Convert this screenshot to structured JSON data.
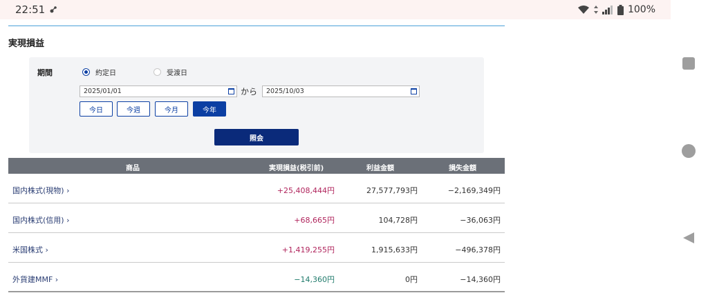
{
  "status_bar": {
    "time": "22:51",
    "battery": "100%"
  },
  "page": {
    "title": "実現損益"
  },
  "filter": {
    "period_label": "期間",
    "radio_options": [
      {
        "label": "約定日",
        "checked": true
      },
      {
        "label": "受渡日",
        "checked": false
      }
    ],
    "date_from": "2025/01/01",
    "date_to": "2025/10/03",
    "from_label": "から",
    "quick_buttons": [
      {
        "label": "今日",
        "active": false
      },
      {
        "label": "今週",
        "active": false
      },
      {
        "label": "今月",
        "active": false
      },
      {
        "label": "今年",
        "active": true
      }
    ],
    "submit_label": "照会"
  },
  "table": {
    "headers": {
      "product": "商品",
      "realized": "実現損益(税引前)",
      "profit": "利益金額",
      "loss": "損失金額"
    },
    "rows": [
      {
        "product": "国内株式(現物) ›",
        "realized": "+25,408,444円",
        "profit": "27,577,793円",
        "loss": "−2,169,349円",
        "sign": "pos"
      },
      {
        "product": "国内株式(信用) ›",
        "realized": "+68,665円",
        "profit": "104,728円",
        "loss": "−36,063円",
        "sign": "pos"
      },
      {
        "product": "米国株式 ›",
        "realized": "+1,419,255円",
        "profit": "1,915,633円",
        "loss": "−496,378円",
        "sign": "pos"
      },
      {
        "product": "外貨建MMF ›",
        "realized": "−14,360円",
        "profit": "0円",
        "loss": "−14,360円",
        "sign": "neg"
      }
    ]
  },
  "colors": {
    "accent": "#0b3fa3",
    "submit": "#0a2a7a",
    "positive": "#b0245c",
    "negative": "#1f7a6b",
    "header_bg": "#6b7078"
  }
}
